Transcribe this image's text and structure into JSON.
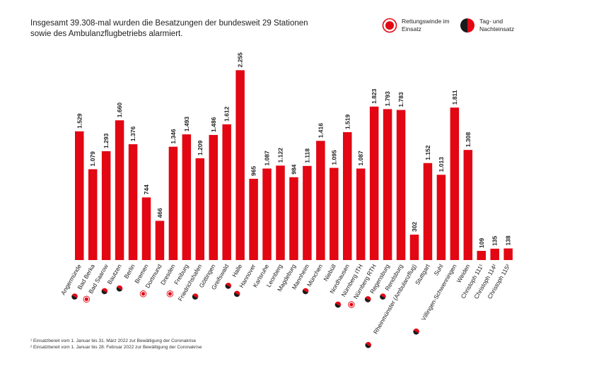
{
  "title_lines": [
    "Insgesamt 39.308-mal wurden die Besatzungen der bundesweit 29 Stationen",
    "sowie des Ambulanzflugbetriebs alarmiert."
  ],
  "legend": {
    "rescue_winch": "Rettungswinde im Einsatz",
    "day_night": "Tag- und Nachteinsatz"
  },
  "colors": {
    "bar": "#e30613",
    "dark": "#1a1a1a",
    "text": "#222222"
  },
  "chart_data": {
    "type": "bar",
    "title": "Insgesamt 39.308-mal wurden die Besatzungen der bundesweit 29 Stationen sowie des Ambulanzflugbetriebs alarmiert.",
    "xlabel": "",
    "ylabel": "",
    "ylim": [
      0,
      2300
    ],
    "categories": [
      "Angermünde",
      "Bad Berka",
      "Bad Saarow",
      "Bautzen",
      "Berlin",
      "Bremen",
      "Dortmund",
      "Dresden",
      "Freiburg",
      "Friedrichshafen",
      "Göttingen",
      "Greifswald",
      "Halle",
      "Hannover",
      "Karlsruhe",
      "Leonberg",
      "Magdeburg",
      "Mannheim",
      "München",
      "Niebüll",
      "Nordhausen",
      "Nürnberg ITH",
      "Nürnberg RTH",
      "Regensburg",
      "Rendsburg",
      "Rheinmünster (Ambulanzflug)",
      "Stuttgart",
      "Suhl",
      "Villingen-Schwenningen",
      "Weiden",
      "Christoph 111¹",
      "Christoph 114²",
      "Christoph 115²"
    ],
    "values": [
      1529,
      1079,
      1293,
      1660,
      1376,
      744,
      466,
      1346,
      1493,
      1209,
      1486,
      1612,
      2255,
      965,
      1087,
      1122,
      984,
      1118,
      1416,
      1095,
      1519,
      1087,
      1823,
      1793,
      1783,
      302,
      1152,
      1013,
      1811,
      1308,
      109,
      135,
      138
    ],
    "value_labels": [
      "1.529",
      "1.079",
      "1.293",
      "1.660",
      "1.376",
      "744",
      "466",
      "1.346",
      "1.493",
      "1.209",
      "1.486",
      "1.612",
      "2.255",
      "965",
      "1.087",
      "1.122",
      "984",
      "1.118",
      "1.416",
      "1.095",
      "1.519",
      "1.087",
      "1.823",
      "1.793",
      "1.783",
      "302",
      "1.152",
      "1.013",
      "1.811",
      "1.308",
      "109",
      "135",
      "138"
    ],
    "markers": [
      "",
      "daynight",
      "winch",
      "daynight",
      "daynight",
      "",
      "winch",
      "",
      "winch",
      "",
      "daynight",
      "",
      "daynight",
      "daynight",
      "",
      "",
      "",
      "",
      "daynight",
      "",
      "",
      "daynight",
      "winch",
      "daynight",
      "daynight",
      "daynight",
      "",
      "",
      "daynight",
      "",
      "",
      "",
      ""
    ]
  },
  "footnotes": [
    "¹ Einsatzbereit vom 1. Januar bis 31. März 2022 zur Bewältigung der Coronakrise",
    "² Einsatzbereit vom 1. Januar bis 28. Februar 2022 zur Bewältigung der Coronakrise"
  ]
}
